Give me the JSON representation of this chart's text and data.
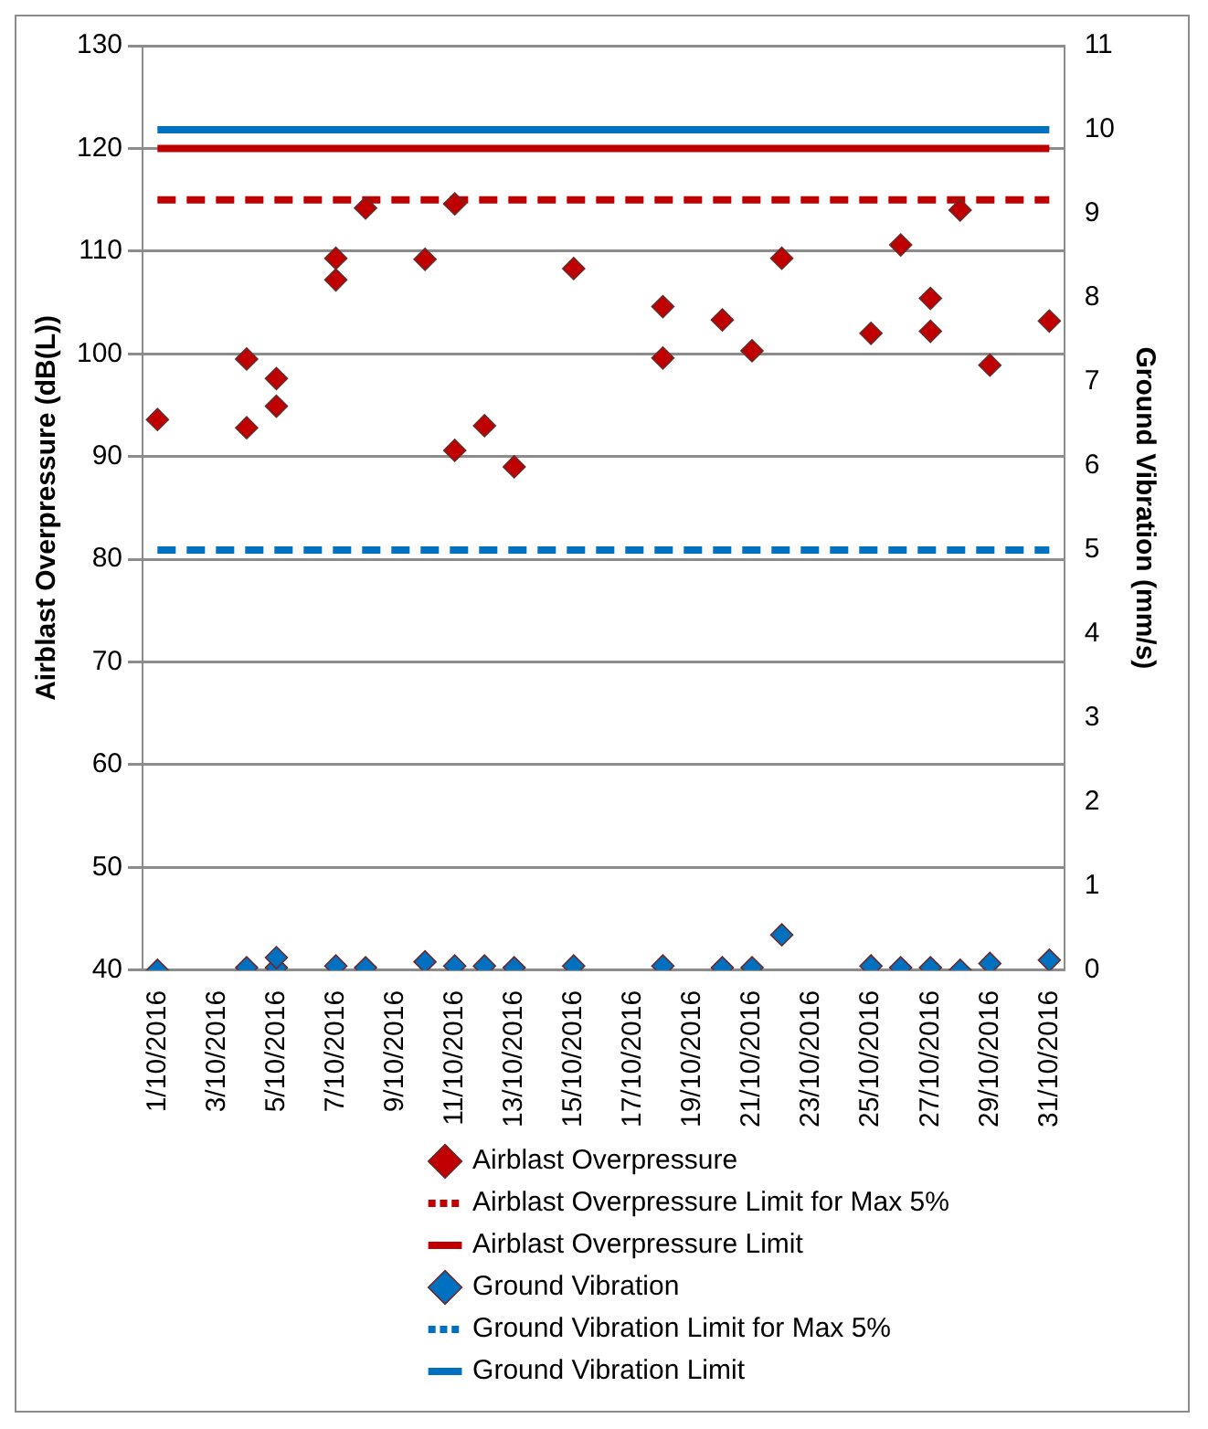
{
  "chart_data": {
    "type": "scatter",
    "ylabel": "Airblast Overpressure (dB(L))",
    "y2label": "Ground Vibration (mm/s)",
    "xlim": [
      "2016-09-30T12:00",
      "2016-10-31T12:00"
    ],
    "xticks": [
      {
        "value": "2016-10-01",
        "label": "1/10/2016"
      },
      {
        "value": "2016-10-03",
        "label": "3/10/2016"
      },
      {
        "value": "2016-10-05",
        "label": "5/10/2016"
      },
      {
        "value": "2016-10-07",
        "label": "7/10/2016"
      },
      {
        "value": "2016-10-09",
        "label": "9/10/2016"
      },
      {
        "value": "2016-10-11",
        "label": "11/10/2016"
      },
      {
        "value": "2016-10-13",
        "label": "13/10/2016"
      },
      {
        "value": "2016-10-15",
        "label": "15/10/2016"
      },
      {
        "value": "2016-10-17",
        "label": "17/10/2016"
      },
      {
        "value": "2016-10-19",
        "label": "19/10/2016"
      },
      {
        "value": "2016-10-21",
        "label": "21/10/2016"
      },
      {
        "value": "2016-10-23",
        "label": "23/10/2016"
      },
      {
        "value": "2016-10-25",
        "label": "25/10/2016"
      },
      {
        "value": "2016-10-27",
        "label": "27/10/2016"
      },
      {
        "value": "2016-10-29",
        "label": "29/10/2016"
      },
      {
        "value": "2016-10-31",
        "label": "31/10/2016"
      }
    ],
    "ylim": [
      40,
      130
    ],
    "yticks": [
      40,
      50,
      60,
      70,
      80,
      90,
      100,
      110,
      120,
      130
    ],
    "y2lim": [
      0,
      11
    ],
    "y2ticks": [
      0,
      1,
      2,
      3,
      4,
      5,
      6,
      7,
      8,
      9,
      10,
      11
    ],
    "grid": "y",
    "legend": "bottom",
    "series": [
      {
        "name": "Airblast Overpressure",
        "type": "scatter",
        "marker": "diamond",
        "color": "#c00000",
        "x": [
          "2016-10-01",
          "2016-10-04",
          "2016-10-04",
          "2016-10-05",
          "2016-10-05",
          "2016-10-07",
          "2016-10-07",
          "2016-10-08",
          "2016-10-10",
          "2016-10-11",
          "2016-10-11",
          "2016-10-12",
          "2016-10-13",
          "2016-10-15",
          "2016-10-18",
          "2016-10-18",
          "2016-10-20",
          "2016-10-21",
          "2016-10-22",
          "2016-10-25",
          "2016-10-26",
          "2016-10-27",
          "2016-10-27",
          "2016-10-28",
          "2016-10-29",
          "2016-10-31"
        ],
        "values": [
          93.6,
          99.5,
          92.8,
          97.6,
          94.9,
          109.3,
          107.2,
          114.2,
          109.2,
          114.6,
          90.6,
          93.0,
          89.0,
          108.3,
          104.6,
          99.6,
          103.3,
          100.3,
          109.3,
          102.0,
          110.6,
          105.4,
          102.2,
          114.0,
          98.9,
          103.2
        ]
      },
      {
        "name": "Airblast Overpressure Limit for Max 5%",
        "type": "line",
        "marker": "none",
        "line_style": "dashed",
        "color": "#c00000",
        "x": [
          "2016-10-01",
          "2016-10-31"
        ],
        "values": [
          115,
          115
        ]
      },
      {
        "name": "Airblast Overpressure Limit",
        "type": "line",
        "marker": "none",
        "line_style": "solid",
        "color": "#c00000",
        "x": [
          "2016-10-01",
          "2016-10-31"
        ],
        "values": [
          120,
          120
        ]
      },
      {
        "name": "Ground Vibration",
        "type": "scatter",
        "marker": "diamond",
        "color": "#0070c0",
        "axis": "y2",
        "x": [
          "2016-10-01",
          "2016-10-04",
          "2016-10-05",
          "2016-10-05",
          "2016-10-07",
          "2016-10-08",
          "2016-10-10",
          "2016-10-11",
          "2016-10-12",
          "2016-10-13",
          "2016-10-15",
          "2016-10-18",
          "2016-10-20",
          "2016-10-21",
          "2016-10-22",
          "2016-10-25",
          "2016-10-26",
          "2016-10-27",
          "2016-10-28",
          "2016-10-29",
          "2016-10-31"
        ],
        "values": [
          0,
          0.03,
          0.03,
          0.15,
          0.05,
          0.03,
          0.1,
          0.05,
          0.05,
          0.03,
          0.05,
          0.05,
          0.03,
          0.03,
          0.42,
          0.05,
          0.03,
          0.03,
          0,
          0.08,
          0.12
        ]
      },
      {
        "name": "Ground Vibration Limit for Max 5%",
        "type": "line",
        "marker": "none",
        "line_style": "dashed",
        "color": "#0070c0",
        "axis": "y2",
        "x": [
          "2016-10-01",
          "2016-10-31"
        ],
        "values": [
          5,
          5
        ]
      },
      {
        "name": "Ground Vibration Limit",
        "type": "line",
        "marker": "none",
        "line_style": "solid",
        "color": "#0070c0",
        "axis": "y2",
        "x": [
          "2016-10-01",
          "2016-10-31"
        ],
        "values": [
          10,
          10
        ]
      }
    ]
  }
}
